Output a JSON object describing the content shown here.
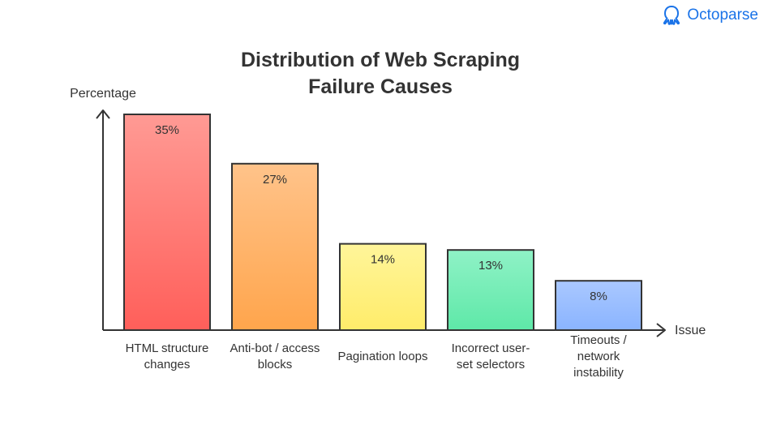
{
  "brand": {
    "name": "Octoparse",
    "icon": "octopus-icon",
    "color": "#1a73e8"
  },
  "title_lines": [
    "Distribution of Web Scraping",
    "Failure Causes"
  ],
  "chart_data": {
    "type": "bar",
    "title": "Distribution of Web Scraping Failure Causes",
    "ylabel": "Percentage",
    "xlabel": "Issue",
    "ylim": [
      0,
      35
    ],
    "grid": false,
    "categories": [
      [
        "HTML structure",
        "changes"
      ],
      [
        "Anti-bot / access",
        "blocks"
      ],
      [
        "Pagination loops"
      ],
      [
        "Incorrect user-",
        "set selectors"
      ],
      [
        "Timeouts /",
        "network",
        "instability"
      ]
    ],
    "values": [
      35,
      27,
      14,
      13,
      8
    ],
    "value_labels": [
      "35%",
      "27%",
      "14%",
      "13%",
      "8%"
    ],
    "colors": [
      [
        "#ff9a94",
        "#ff5f5a"
      ],
      [
        "#ffc38a",
        "#ffa54c"
      ],
      [
        "#fff59a",
        "#ffec6a"
      ],
      [
        "#8ff2c6",
        "#5ee8a8"
      ],
      [
        "#aac8ff",
        "#8ab4ff"
      ]
    ]
  }
}
